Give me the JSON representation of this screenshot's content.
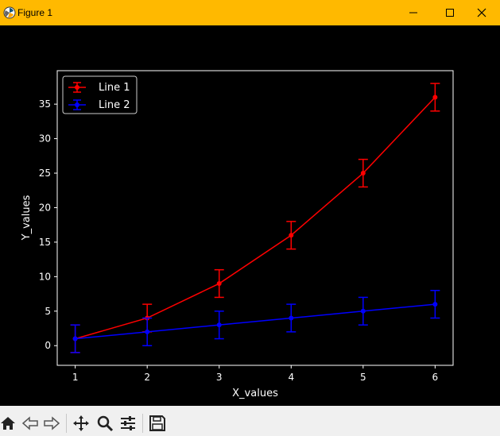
{
  "window": {
    "title": "Figure 1",
    "minimize_icon": "minimize-icon",
    "maximize_icon": "maximize-icon",
    "close_icon": "close-icon",
    "titlebar_color": "#ffb900"
  },
  "toolbar": {
    "buttons": [
      {
        "name": "home-icon"
      },
      {
        "name": "back-icon"
      },
      {
        "name": "forward-icon"
      },
      {
        "name": "pan-icon"
      },
      {
        "name": "zoom-icon"
      },
      {
        "name": "configure-subplots-icon"
      },
      {
        "name": "save-icon"
      }
    ]
  },
  "chart_data": {
    "type": "line",
    "title": "",
    "xlabel": "X_values",
    "ylabel": "Y_values",
    "x": [
      1,
      2,
      3,
      4,
      5,
      6
    ],
    "xticks": [
      "1",
      "2",
      "3",
      "4",
      "5",
      "6"
    ],
    "yticks": [
      "0",
      "5",
      "10",
      "15",
      "20",
      "25",
      "30",
      "35"
    ],
    "xlim": [
      0.75,
      6.25
    ],
    "ylim": [
      -2.85,
      39.85
    ],
    "grid": false,
    "legend_position": "top-left",
    "background": "#000000",
    "series": [
      {
        "name": "Line 1",
        "color": "#ff0000",
        "values": [
          1,
          4,
          9,
          16,
          25,
          36
        ],
        "errors": [
          2,
          2,
          2,
          2,
          2,
          2
        ]
      },
      {
        "name": "Line 2",
        "color": "#0000ff",
        "values": [
          1,
          2,
          3,
          4,
          5,
          6
        ],
        "errors": [
          2,
          2,
          2,
          2,
          2,
          2
        ]
      }
    ]
  }
}
